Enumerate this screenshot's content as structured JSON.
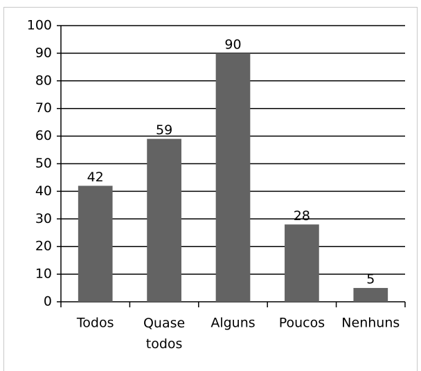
{
  "chart_data": {
    "type": "bar",
    "categories": [
      "Todos",
      "Quase todos",
      "Alguns",
      "Poucos",
      "Nenhuns"
    ],
    "values": [
      42,
      59,
      90,
      28,
      5
    ],
    "color": "#636363",
    "ylim": [
      0,
      100
    ],
    "yticks": [
      0,
      10,
      20,
      30,
      40,
      50,
      60,
      70,
      80,
      90,
      100
    ],
    "grid": true
  }
}
